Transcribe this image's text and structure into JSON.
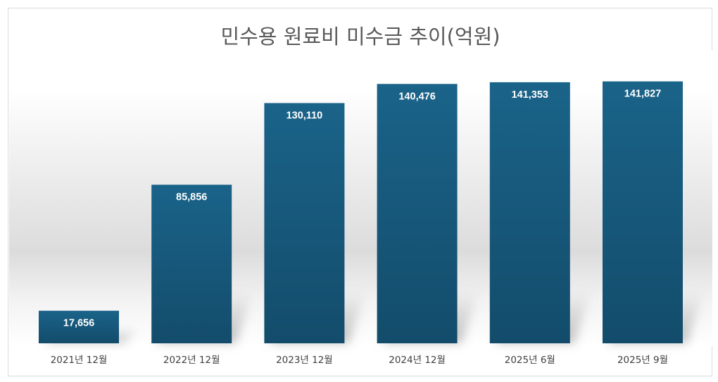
{
  "chart_data": {
    "type": "bar",
    "title": "민수용 원료비 미수금 추이(억원)",
    "xlabel": "",
    "ylabel": "",
    "categories": [
      "2021년 12월",
      "2022년 12월",
      "2023년 12월",
      "2024년 12월",
      "2025년 6월",
      "2025년 9월"
    ],
    "values": [
      17656,
      85856,
      130110,
      140476,
      141353,
      141827
    ],
    "data_labels": [
      "17,656",
      "85,856",
      "130,110",
      "140,476",
      "141,353",
      "141,827"
    ],
    "ylim": [
      0,
      160000
    ],
    "grid": false,
    "legend": "none",
    "colors": {
      "bar_top": "#1a6389",
      "bar_bottom": "#134c6b",
      "bar_label": "#ffffff",
      "title": "#595959",
      "tick": "#404040"
    }
  }
}
